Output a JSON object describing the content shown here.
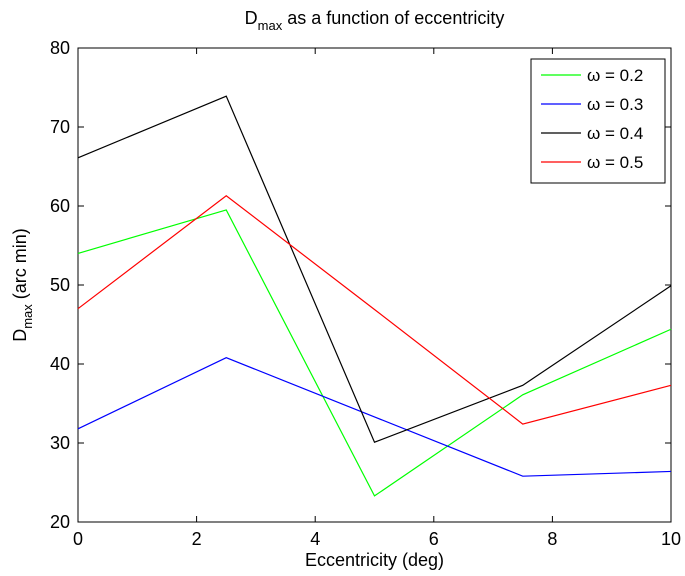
{
  "chart_data": {
    "type": "line",
    "title": {
      "main": "D",
      "sub": "max",
      "rest": " as a function of eccentricity"
    },
    "xlabel": "Eccentricity (deg)",
    "ylabel": {
      "main": "D",
      "sub": "max",
      "rest": " (arc min)"
    },
    "xlim": [
      0,
      10
    ],
    "ylim": [
      20,
      80
    ],
    "xticks": [
      0,
      2,
      4,
      6,
      8,
      10
    ],
    "yticks": [
      20,
      30,
      40,
      50,
      60,
      70,
      80
    ],
    "grid": false,
    "legend_position": "top-right",
    "x": [
      0,
      2.5,
      5,
      7.5,
      10
    ],
    "series": [
      {
        "name": "ω = 0.2",
        "color": "#00ff00",
        "values": [
          54,
          59.5,
          23.3,
          36.1,
          44.4
        ]
      },
      {
        "name": "ω = 0.3",
        "color": "#0000ff",
        "values": [
          31.8,
          40.8,
          33.3,
          25.8,
          26.4
        ]
      },
      {
        "name": "ω = 0.4",
        "color": "#000000",
        "values": [
          66.1,
          73.9,
          30.1,
          37.3,
          49.9
        ]
      },
      {
        "name": "ω = 0.5",
        "color": "#ff0000",
        "values": [
          47,
          61.3,
          46.9,
          32.4,
          37.3
        ]
      }
    ]
  }
}
